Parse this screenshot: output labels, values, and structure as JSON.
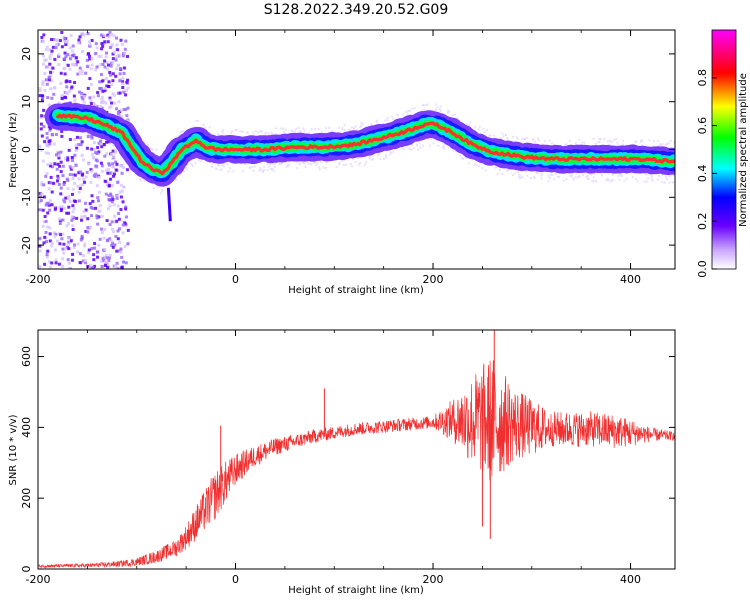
{
  "figure": {
    "title": "S128.2022.349.20.52.G09"
  },
  "colors": {
    "snr_line": "#f03030",
    "ridge_core": "#ff3030",
    "axis": "#000000",
    "background": "#ffffff"
  },
  "chart_data": [
    {
      "type": "heatmap",
      "title": "",
      "xlabel": "Height of straight line (km)",
      "ylabel": "Frequency (Hz)",
      "xlim": [
        -200,
        445
      ],
      "ylim": [
        -25,
        25
      ],
      "xticks": [
        -200,
        0,
        200,
        400
      ],
      "yticks": [
        -20,
        -10,
        0,
        10,
        20
      ],
      "colorbar": {
        "label": "Normalized spectral amplitude",
        "range": [
          0,
          1
        ],
        "ticks": [
          0.0,
          0.2,
          0.4,
          0.6,
          0.8
        ],
        "colormap": "white-violet-blue-cyan-green-yellow-red-magenta"
      },
      "ridge": {
        "x": [
          -175,
          -150,
          -130,
          -115,
          -105,
          -95,
          -85,
          -75,
          -65,
          -55,
          -45,
          -40,
          -30,
          -20,
          0,
          30,
          60,
          90,
          120,
          150,
          175,
          195,
          205,
          220,
          240,
          260,
          290,
          320,
          350,
          380,
          410,
          445
        ],
        "y": [
          7,
          6.5,
          5,
          3.5,
          0.5,
          -2.5,
          -4,
          -5,
          -3,
          0,
          1,
          2,
          0.5,
          0,
          0,
          0,
          0.5,
          0.5,
          1,
          2.5,
          4,
          5.5,
          5,
          3.5,
          1,
          -0.5,
          -1.5,
          -2,
          -2,
          -2,
          -2,
          -2.5
        ]
      }
    },
    {
      "type": "line",
      "title": "",
      "xlabel": "Height of straight line (km)",
      "ylabel": "SNR (10 * v/v)",
      "xlim": [
        -200,
        445
      ],
      "ylim": [
        0,
        675
      ],
      "xticks": [
        -200,
        0,
        200,
        400
      ],
      "yticks": [
        0,
        200,
        400,
        600
      ],
      "series": [
        {
          "x": [
            -200,
            -150,
            -120,
            -100,
            -80,
            -60,
            -50,
            -40,
            -30,
            -20,
            -10,
            0,
            20,
            40,
            60,
            80,
            100,
            120,
            140,
            160,
            180,
            200,
            220,
            240,
            260,
            280,
            300,
            320,
            340,
            360,
            380,
            400,
            420,
            445
          ],
          "y": [
            8,
            10,
            14,
            20,
            35,
            60,
            90,
            130,
            170,
            210,
            245,
            280,
            320,
            345,
            360,
            375,
            385,
            395,
            400,
            405,
            410,
            415,
            420,
            420,
            420,
            410,
            400,
            395,
            395,
            395,
            390,
            385,
            380,
            375
          ],
          "spread": [
            4,
            5,
            8,
            12,
            18,
            25,
            35,
            50,
            60,
            70,
            60,
            45,
            30,
            25,
            20,
            20,
            18,
            18,
            18,
            18,
            18,
            18,
            60,
            130,
            190,
            110,
            80,
            50,
            50,
            50,
            50,
            40,
            20,
            12
          ]
        }
      ],
      "spikes": [
        {
          "x": -15,
          "y": 405
        },
        {
          "x": 90,
          "y": 510
        },
        {
          "x": 262,
          "y": 675
        },
        {
          "x": 258,
          "y": 85
        },
        {
          "x": 250,
          "y": 120
        }
      ]
    }
  ],
  "notes_hidden": ""
}
